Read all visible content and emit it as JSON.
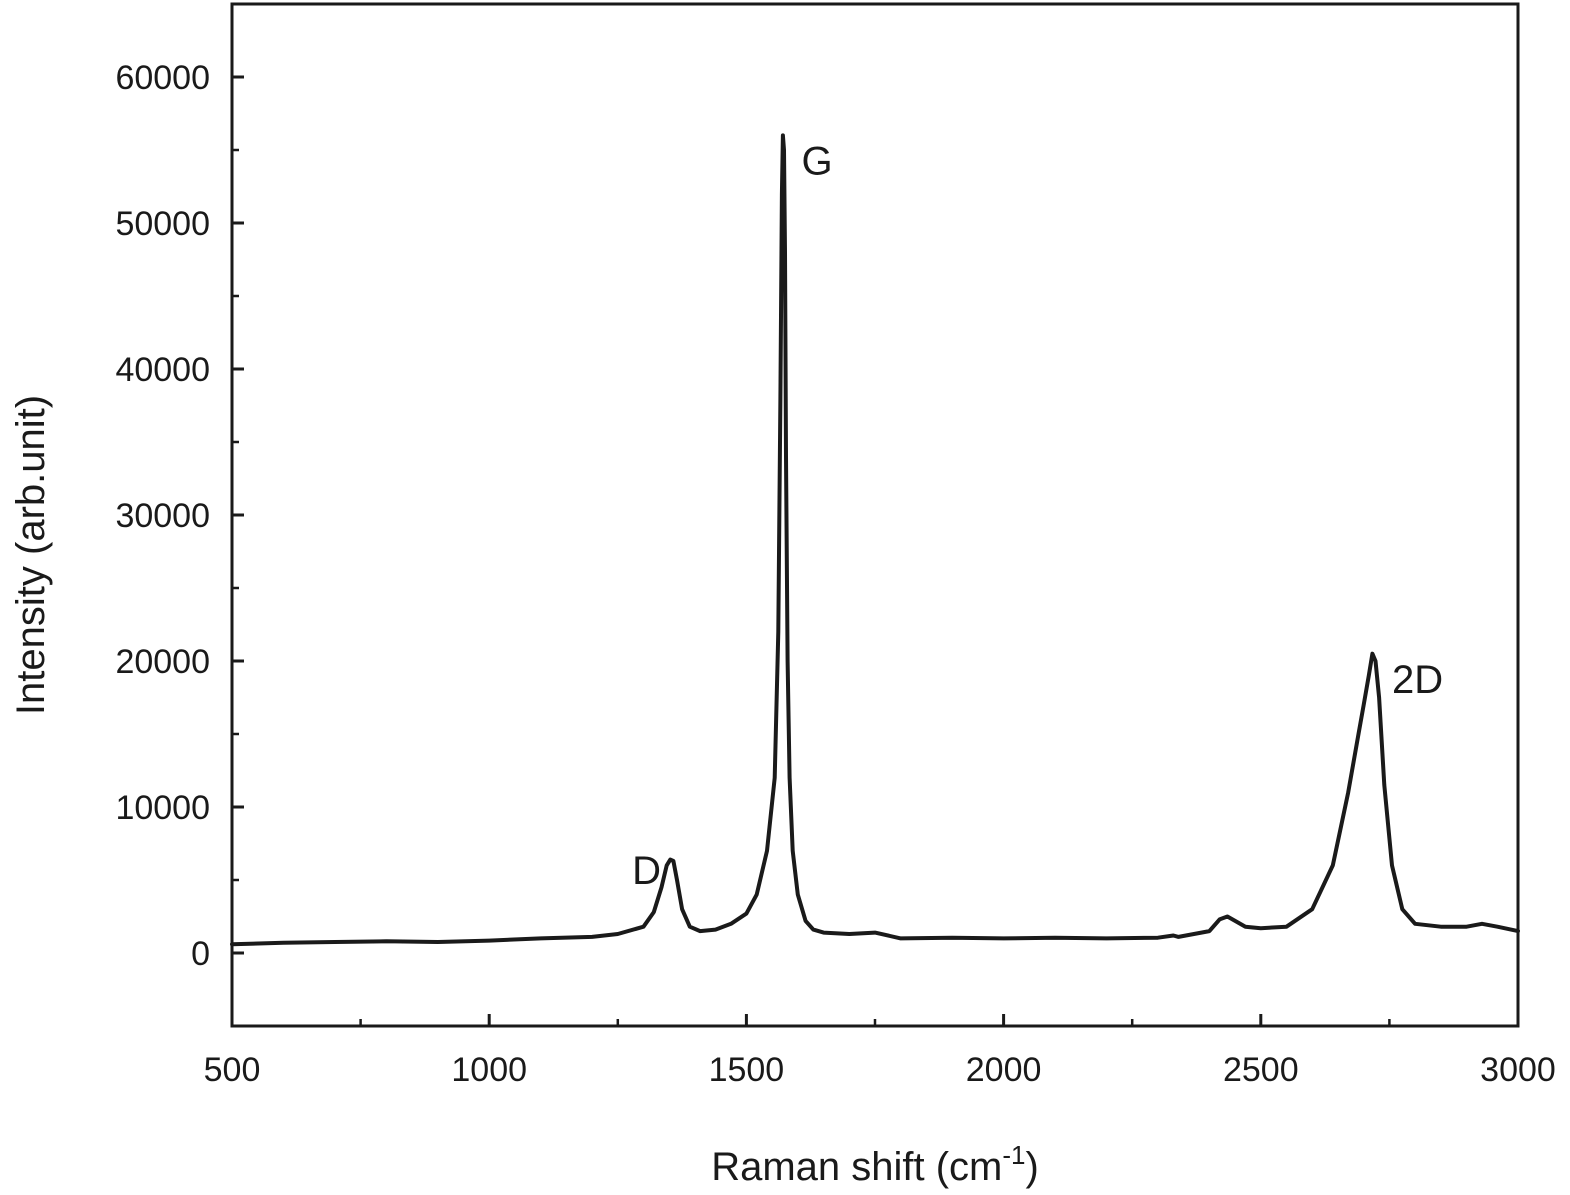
{
  "chart_data": {
    "type": "line",
    "title": "",
    "xlabel_main": "Raman shift (cm",
    "xlabel_sup": "-1",
    "xlabel_close": ")",
    "ylabel": "Intensity (arb.unit)",
    "xlim": [
      500,
      3000
    ],
    "ylim": [
      -5000,
      65000
    ],
    "grid": false,
    "x_ticks": [
      500,
      1000,
      1500,
      2000,
      2500,
      3000
    ],
    "x_tick_labels": [
      "500",
      "1000",
      "1500",
      "2000",
      "2500",
      "3000"
    ],
    "y_ticks": [
      0,
      10000,
      20000,
      30000,
      40000,
      50000,
      60000
    ],
    "y_tick_labels": [
      "0",
      "10000",
      "20000",
      "30000",
      "40000",
      "50000",
      "60000"
    ],
    "annotations": [
      {
        "text": "D",
        "x": 1340,
        "y": 6500
      },
      {
        "text": "G",
        "x": 1580,
        "y": 54000
      },
      {
        "text": "2D",
        "x": 2720,
        "y": 20000
      }
    ],
    "series": [
      {
        "color": "#1a1a1a",
        "x": [
          500,
          600,
          700,
          800,
          900,
          1000,
          1100,
          1200,
          1250,
          1300,
          1320,
          1335,
          1345,
          1352,
          1358,
          1365,
          1375,
          1390,
          1410,
          1440,
          1470,
          1500,
          1520,
          1540,
          1555,
          1562,
          1566,
          1569,
          1571,
          1573,
          1575,
          1577,
          1580,
          1584,
          1590,
          1600,
          1615,
          1630,
          1650,
          1700,
          1750,
          1800,
          1900,
          2000,
          2100,
          2200,
          2300,
          2330,
          2340,
          2400,
          2420,
          2435,
          2450,
          2470,
          2500,
          2550,
          2600,
          2640,
          2670,
          2690,
          2700,
          2710,
          2717,
          2723,
          2730,
          2740,
          2755,
          2775,
          2800,
          2850,
          2900,
          2930,
          2960,
          3000
        ],
        "y": [
          600,
          700,
          750,
          800,
          750,
          850,
          1000,
          1100,
          1300,
          1800,
          2800,
          4500,
          6000,
          6400,
          6300,
          5000,
          3000,
          1800,
          1500,
          1600,
          2000,
          2700,
          4000,
          7000,
          12000,
          22000,
          38000,
          52000,
          56000,
          55000,
          48000,
          34000,
          20000,
          12000,
          7000,
          4000,
          2200,
          1600,
          1400,
          1300,
          1400,
          1000,
          1050,
          1000,
          1050,
          1000,
          1050,
          1200,
          1100,
          1500,
          2300,
          2500,
          2200,
          1800,
          1700,
          1800,
          3000,
          6000,
          11000,
          15000,
          17000,
          19000,
          20500,
          20000,
          17500,
          11500,
          6000,
          3000,
          2000,
          1800,
          1800,
          2000,
          1800,
          1500
        ]
      }
    ]
  }
}
